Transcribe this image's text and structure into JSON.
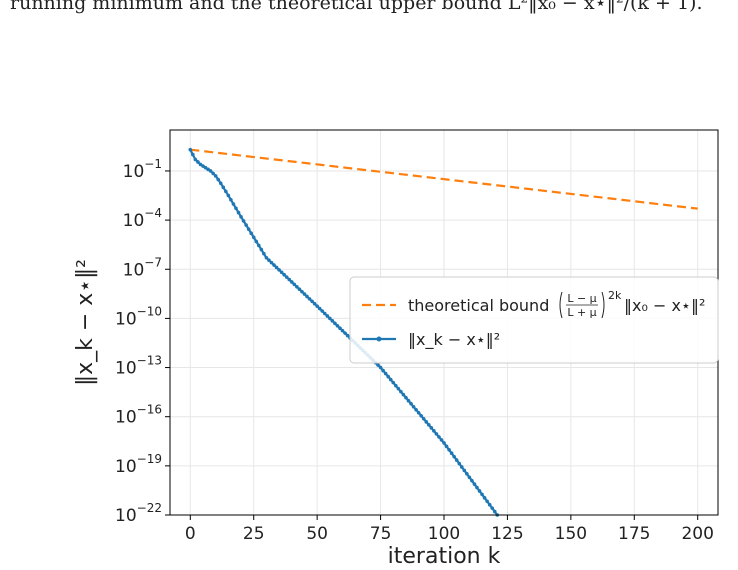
{
  "caption": {
    "fragment_top": "",
    "line": "running minimum and the theoretical upper bound L²‖x₀ − x⋆‖²/(k + 1)."
  },
  "chart_data": {
    "type": "line",
    "title": "",
    "xlabel": "iteration k",
    "ylabel": "‖x_k − x⋆‖²",
    "xlim": [
      -8,
      208
    ],
    "ylim": [
      -22,
      1.5
    ],
    "y_scale": "log",
    "x_ticks": [
      0,
      25,
      50,
      75,
      100,
      125,
      150,
      175,
      200
    ],
    "y_ticks": [
      {
        "exp": -1,
        "base": "10",
        "sup": "−1"
      },
      {
        "exp": -4,
        "base": "10",
        "sup": "−4"
      },
      {
        "exp": -7,
        "base": "10",
        "sup": "−7"
      },
      {
        "exp": -10,
        "base": "10",
        "sup": "−10"
      },
      {
        "exp": -13,
        "base": "10",
        "sup": "−13"
      },
      {
        "exp": -16,
        "base": "10",
        "sup": "−16"
      },
      {
        "exp": -19,
        "base": "10",
        "sup": "−19"
      },
      {
        "exp": -22,
        "base": "10",
        "sup": "−22"
      }
    ],
    "grid": true,
    "legend_position": "center-right",
    "series": [
      {
        "name": "theoretical bound ((L−μ)/(L+μ))^{2k} ‖x₀ − x⋆‖²",
        "legend_parts": {
          "prefix": "theoretical bound",
          "frac_num": "L − μ",
          "frac_den": "L + μ",
          "power": "2k",
          "suffix": "‖x₀ − x⋆‖²"
        },
        "color": "#ff7f0e",
        "style": "dashed",
        "marker": "none",
        "points": [
          [
            0,
            0.3
          ],
          [
            200,
            -3.3
          ]
        ]
      },
      {
        "name": "‖x_k − x⋆‖²",
        "color": "#1f77b4",
        "style": "solid",
        "marker": "dot",
        "points": [
          [
            0,
            0.3
          ],
          [
            2,
            -0.3
          ],
          [
            4,
            -0.6
          ],
          [
            6,
            -0.8
          ],
          [
            8,
            -1.0
          ],
          [
            10,
            -1.3
          ],
          [
            12,
            -1.75
          ],
          [
            15,
            -2.5
          ],
          [
            20,
            -3.8
          ],
          [
            30,
            -6.3
          ],
          [
            50,
            -9.25
          ],
          [
            75,
            -13.0
          ],
          [
            100,
            -17.6
          ],
          [
            121,
            -22.0
          ]
        ]
      }
    ]
  }
}
